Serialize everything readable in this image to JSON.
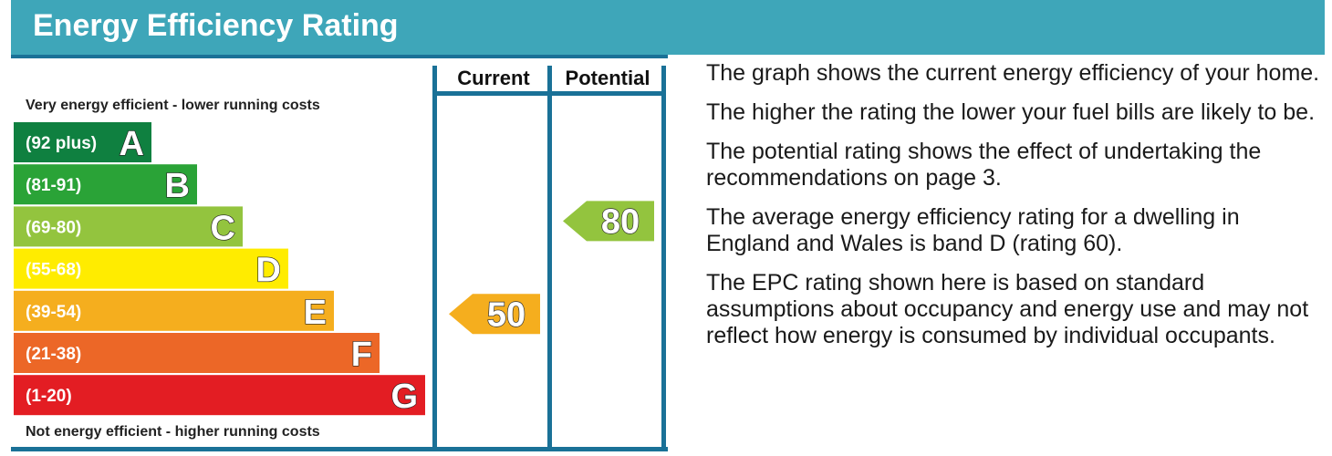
{
  "header": {
    "title": "Energy Efficiency Rating"
  },
  "colors": {
    "header": "#3ea6b9",
    "frame": "#1a7197",
    "bands": [
      "#0f8040",
      "#2aa337",
      "#93c43e",
      "#ffec00",
      "#f5ae1e",
      "#ec6727",
      "#e31d23"
    ]
  },
  "chart_data": {
    "type": "bar",
    "top_caption": "Very energy efficient - lower running costs",
    "bottom_caption": "Not energy efficient - higher running costs",
    "columns": [
      "Current",
      "Potential"
    ],
    "bands": [
      {
        "letter": "A",
        "range": "(92 plus)",
        "min": 92,
        "max": 100
      },
      {
        "letter": "B",
        "range": "(81-91)",
        "min": 81,
        "max": 91
      },
      {
        "letter": "C",
        "range": "(69-80)",
        "min": 69,
        "max": 80
      },
      {
        "letter": "D",
        "range": "(55-68)",
        "min": 55,
        "max": 68
      },
      {
        "letter": "E",
        "range": "(39-54)",
        "min": 39,
        "max": 54
      },
      {
        "letter": "F",
        "range": "(21-38)",
        "min": 21,
        "max": 38
      },
      {
        "letter": "G",
        "range": "(1-20)",
        "min": 1,
        "max": 20
      }
    ],
    "ratings": [
      {
        "column": "Current",
        "value": 50,
        "band": "E",
        "color": "#f5ae1e"
      },
      {
        "column": "Potential",
        "value": 80,
        "band": "C",
        "color": "#93c43e"
      }
    ]
  },
  "info": {
    "paragraphs": [
      "The graph shows the current energy efficiency of your home.",
      "The higher the rating the lower your fuel bills are likely to be.",
      "The potential rating shows the effect of undertaking the recommendations on page 3.",
      "The average energy efficiency rating for a dwelling in England and Wales is band D (rating 60).",
      "The EPC rating shown here is based on standard assumptions about occupancy and energy use and may not reflect how energy is consumed by individual occupants."
    ]
  }
}
